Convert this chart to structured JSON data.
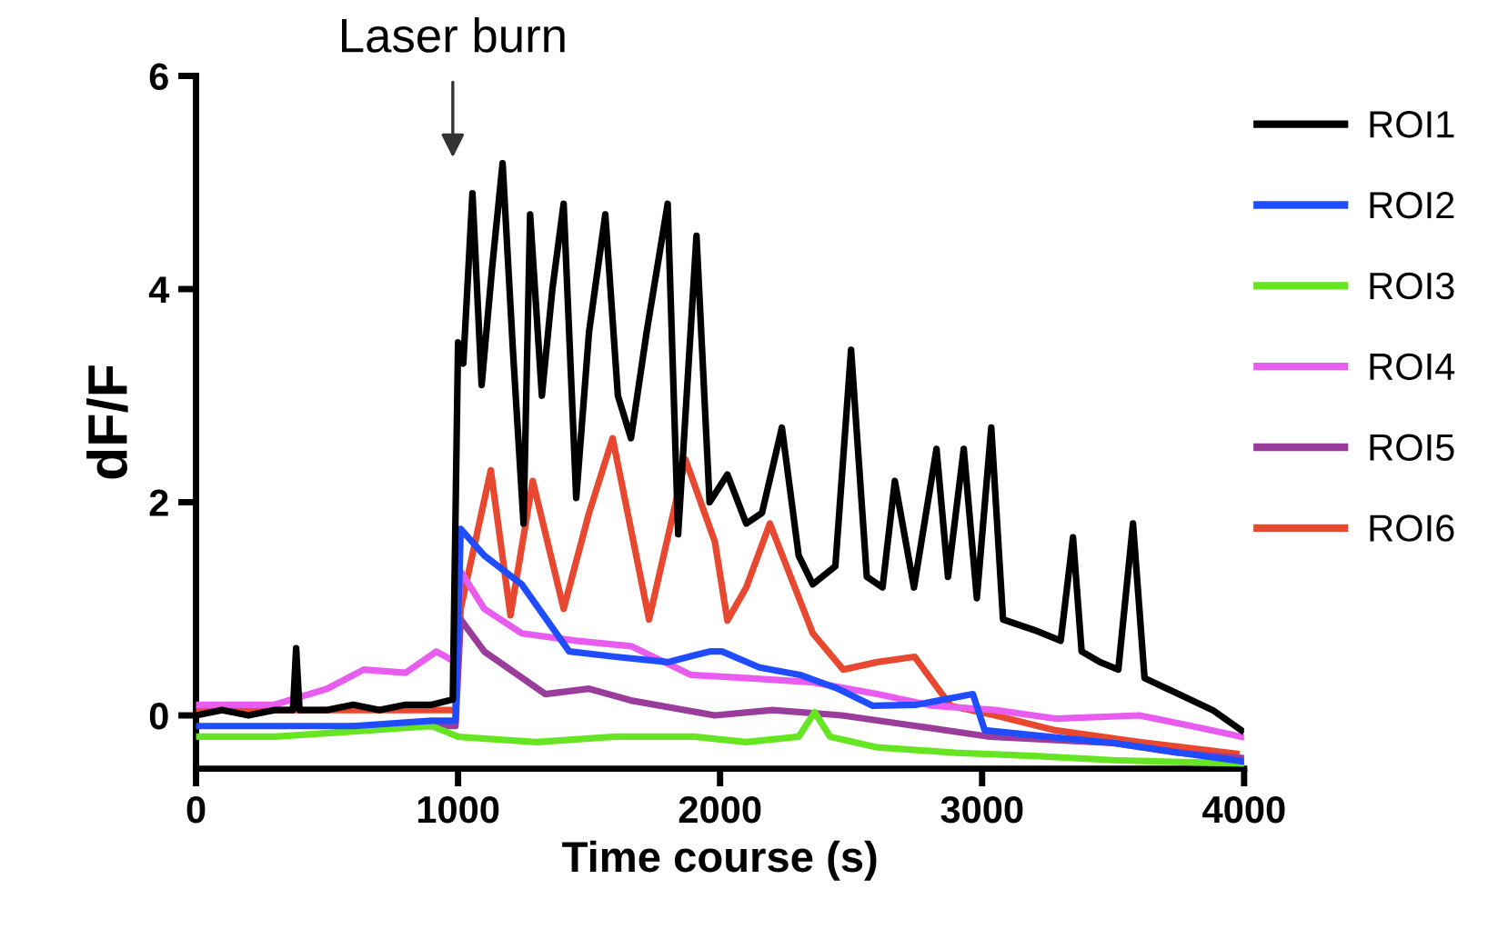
{
  "chart_data": {
    "type": "line",
    "xlabel": "Time course (s)",
    "ylabel": "dF/F",
    "xlim": [
      0,
      4000
    ],
    "xticks": [
      0,
      1000,
      2000,
      3000,
      4000
    ],
    "ylim": [
      -0.5,
      6
    ],
    "yticks": [
      0,
      2,
      4,
      6
    ],
    "grid": false,
    "legend": "top right",
    "marker": "none",
    "line_style": "solid",
    "annotations": [
      "Laser burn"
    ],
    "series": [
      {
        "name": "ROI1",
        "color": "#000000",
        "x": [
          0,
          100,
          200,
          300,
          370,
          382,
          395,
          500,
          600,
          700,
          800,
          900,
          980,
          1000,
          1020,
          1055,
          1090,
          1130,
          1170,
          1210,
          1250,
          1275,
          1320,
          1360,
          1403,
          1451,
          1500,
          1562,
          1610,
          1660,
          1720,
          1800,
          1840,
          1910,
          1960,
          2028,
          2100,
          2160,
          2236,
          2300,
          2354,
          2440,
          2500,
          2560,
          2620,
          2667,
          2740,
          2826,
          2870,
          2930,
          2980,
          3035,
          3080,
          3200,
          3300,
          3347,
          3380,
          3450,
          3520,
          3576,
          3620,
          3750,
          3880,
          3990
        ],
        "values": [
          0.0,
          0.05,
          0.0,
          0.05,
          0.05,
          0.63,
          0.05,
          0.05,
          0.1,
          0.05,
          0.1,
          0.1,
          0.15,
          3.5,
          3.3,
          4.9,
          3.1,
          4.2,
          5.18,
          3.4,
          1.8,
          4.7,
          3.0,
          4.0,
          4.8,
          2.04,
          3.6,
          4.7,
          3.0,
          2.6,
          3.6,
          4.8,
          1.7,
          4.5,
          2.0,
          2.26,
          1.8,
          1.9,
          2.7,
          1.5,
          1.23,
          1.4,
          3.43,
          1.3,
          1.2,
          2.2,
          1.2,
          2.5,
          1.3,
          2.5,
          1.1,
          2.7,
          0.9,
          0.8,
          0.7,
          1.67,
          0.6,
          0.5,
          0.43,
          1.8,
          0.35,
          0.2,
          0.05,
          -0.14
        ]
      },
      {
        "name": "ROI2",
        "color": "#1f4cff",
        "x": [
          0,
          300,
          600,
          900,
          990,
          1010,
          1100,
          1243,
          1424,
          1600,
          1800,
          1960,
          2007,
          2150,
          2305,
          2450,
          2583,
          2750,
          2965,
          3010,
          3250,
          3507,
          3750,
          3990
        ],
        "values": [
          -0.1,
          -0.1,
          -0.1,
          -0.05,
          -0.05,
          1.75,
          1.5,
          1.23,
          0.6,
          0.55,
          0.5,
          0.6,
          0.6,
          0.45,
          0.38,
          0.25,
          0.09,
          0.1,
          0.2,
          -0.14,
          -0.2,
          -0.26,
          -0.35,
          -0.43
        ]
      },
      {
        "name": "ROI3",
        "color": "#66e622",
        "x": [
          0,
          300,
          600,
          900,
          1000,
          1300,
          1600,
          1900,
          2100,
          2300,
          2361,
          2420,
          2600,
          2900,
          3200,
          3500,
          3800,
          3990
        ],
        "values": [
          -0.2,
          -0.2,
          -0.15,
          -0.1,
          -0.2,
          -0.25,
          -0.2,
          -0.2,
          -0.25,
          -0.2,
          0.03,
          -0.2,
          -0.3,
          -0.35,
          -0.38,
          -0.42,
          -0.44,
          -0.45
        ]
      },
      {
        "name": "ROI4",
        "color": "#e85cf0",
        "x": [
          0,
          300,
          500,
          640,
          800,
          917,
          990,
          1010,
          1100,
          1243,
          1450,
          1660,
          1889,
          2100,
          2354,
          2600,
          2812,
          3050,
          3280,
          3600,
          3800,
          3990
        ],
        "values": [
          0.1,
          0.1,
          0.25,
          0.43,
          0.4,
          0.6,
          0.5,
          1.35,
          1.0,
          0.77,
          0.7,
          0.65,
          0.38,
          0.35,
          0.31,
          0.2,
          0.09,
          0.05,
          -0.03,
          0.0,
          -0.1,
          -0.2
        ]
      },
      {
        "name": "ROI5",
        "color": "#9a3c9c",
        "x": [
          600,
          900,
          990,
          1010,
          1100,
          1333,
          1500,
          1660,
          1980,
          2200,
          2465,
          2750,
          3030,
          3500,
          3750,
          3990
        ],
        "values": [
          -0.1,
          -0.1,
          -0.1,
          0.9,
          0.6,
          0.2,
          0.25,
          0.14,
          0.0,
          0.05,
          0.0,
          -0.1,
          -0.2,
          -0.26,
          -0.35,
          -0.4
        ]
      },
      {
        "name": "ROI6",
        "color": "#e8482f",
        "x": [
          0,
          600,
          900,
          990,
          1010,
          1125,
          1200,
          1285,
          1403,
          1500,
          1590,
          1729,
          1868,
          1980,
          2028,
          2100,
          2190,
          2354,
          2470,
          2600,
          2743,
          2880,
          3050,
          3280,
          3600,
          3970
        ],
        "values": [
          0.05,
          0.05,
          0.05,
          0.05,
          1.0,
          2.3,
          0.94,
          2.2,
          1.0,
          1.9,
          2.6,
          0.9,
          2.4,
          1.63,
          0.89,
          1.2,
          1.8,
          0.77,
          0.43,
          0.5,
          0.55,
          0.09,
          0.0,
          -0.14,
          -0.25,
          -0.36
        ]
      }
    ]
  }
}
